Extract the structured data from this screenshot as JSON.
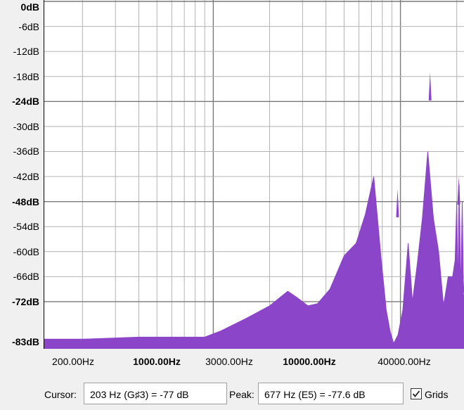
{
  "chart_data": {
    "type": "area",
    "title": "",
    "xlabel": "",
    "ylabel": "",
    "x_scale": "log",
    "xlim": [
      125,
      22050
    ],
    "ylim": [
      -84,
      0
    ],
    "grid": true,
    "fill_color": "#8b45c8",
    "y_ticks": [
      "0dB",
      "-6dB",
      "-12dB",
      "-18dB",
      "-24dB",
      "-30dB",
      "-36dB",
      "-42dB",
      "-48dB",
      "-54dB",
      "-60dB",
      "-66dB",
      "-72dB",
      "-83dB"
    ],
    "y_tick_values": [
      0,
      -6,
      -12,
      -18,
      -24,
      -30,
      -36,
      -42,
      -48,
      -54,
      -60,
      -66,
      -72,
      -83
    ],
    "y_tick_bold": [
      true,
      false,
      false,
      false,
      true,
      false,
      false,
      false,
      true,
      false,
      false,
      false,
      true,
      true
    ],
    "x_ticks": [
      "200.00Hz",
      "1000.00Hz",
      "3000.00Hz",
      "10000.00Hz",
      "40000.00Hz"
    ],
    "x_tick_bold": [
      false,
      true,
      false,
      true,
      false
    ],
    "series": [
      {
        "x": [
          125,
          200,
          400,
          700,
          900,
          1100,
          1500,
          2000,
          2500,
          2800,
          3200,
          3600,
          4200,
          5000,
          5800,
          6500,
          7200,
          7900,
          8400,
          8800,
          9200,
          9700,
          10300,
          11000,
          11600,
          12300,
          13100,
          14000,
          15000,
          16000,
          17000,
          18000,
          19000,
          19600,
          20000,
          20300,
          20600,
          21000,
          21400,
          21700,
          22050
        ],
        "y": [
          -81,
          -81,
          -80.5,
          -80.5,
          -80.5,
          -79,
          -76,
          -73,
          -69.5,
          -71,
          -73,
          -72.5,
          -69,
          -61,
          -58,
          -51,
          -42,
          -62,
          -74,
          -79,
          -82,
          -80,
          -74,
          -58,
          -72,
          -63,
          -52,
          -36,
          -52,
          -60,
          -73,
          -66,
          -66,
          -62,
          -48,
          -70,
          -44,
          -70,
          -48,
          -70,
          -73
        ]
      }
    ],
    "spikes": [
      {
        "x": 9650,
        "y": -45
      },
      {
        "x": 14400,
        "y": -17
      },
      {
        "x": 20500,
        "y": -42
      },
      {
        "x": 21550,
        "y": -63
      }
    ]
  },
  "status": {
    "cursor_label": "Cursor:",
    "cursor_value": "203 Hz (G♯3) = -77 dB",
    "peak_label": "Peak:",
    "peak_value": "677 Hz (E5) = -77.6 dB",
    "grids_label": "Grids",
    "grids_checked": true
  }
}
